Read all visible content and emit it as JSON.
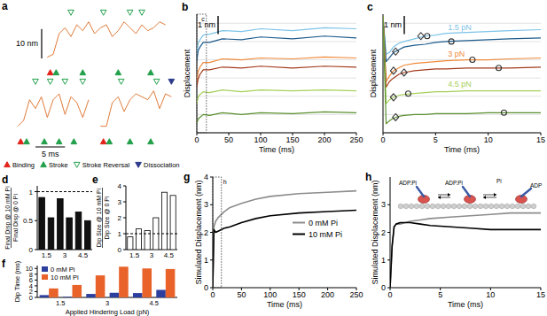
{
  "chart_data": [
    {
      "title": "a",
      "type": "trace",
      "tick_labels": false,
      "xlim": [
        0,
        27
      ],
      "ylim": [
        -4,
        14
      ],
      "events": [
        {
          "name": "Binding",
          "color": "#e2231a",
          "marker": "triangle-up"
        },
        {
          "name": "Stroke",
          "color": "#22a04b",
          "marker": "triangle-up"
        },
        {
          "name": "Stroke Reversal",
          "color": "#22a04b",
          "marker": "triangle-down-open"
        },
        {
          "name": "Dissociation",
          "color": "#2e3a8c",
          "marker": "triangle-down"
        }
      ],
      "scale_bars": [
        {
          "label": "10 nm",
          "value": 10,
          "axis": "y"
        },
        {
          "label": "5 ms",
          "value": 5,
          "axis": "x"
        }
      ],
      "series": [
        {
          "color": "#e07b39",
          "row": 0,
          "x": [
            5,
            6,
            7,
            8,
            9,
            10,
            11,
            12,
            13,
            14,
            15,
            16,
            17,
            18,
            19,
            20,
            21,
            22,
            23,
            24,
            25
          ],
          "values": [
            0,
            1,
            8,
            10,
            7,
            11,
            9,
            12,
            8,
            10,
            11,
            7,
            9,
            12,
            10,
            8,
            11,
            9,
            10,
            12,
            11
          ],
          "events": [
            [
              5.5
            ],
            [
              6.5,
              11,
              17,
              22.5
            ],
            [
              9,
              14.5,
              19,
              21
            ],
            []
          ]
        },
        {
          "color": "#e07b39",
          "row": 1,
          "x": [
            0,
            1,
            2,
            3,
            4,
            5,
            6,
            7,
            8,
            9,
            10,
            11,
            12
          ],
          "values": [
            0,
            2,
            9,
            6,
            10,
            3,
            9,
            11,
            4,
            10,
            8,
            3,
            9
          ],
          "events": [
            [
              0.5
            ],
            [
              1.5,
              4.5,
              7,
              9.5
            ],
            [
              3,
              5.5,
              8,
              11
            ],
            []
          ]
        },
        {
          "color": "#e07b39",
          "row": 1,
          "x": [
            14,
            15,
            16,
            17,
            18,
            19,
            20,
            21,
            22,
            23,
            24,
            25,
            26
          ],
          "values": [
            0,
            0,
            8,
            10,
            5,
            9,
            11,
            10,
            9,
            12,
            6,
            11,
            10
          ],
          "events": [
            [
              14.5
            ],
            [
              15.5,
              19,
              22.5
            ],
            [
              17.5,
              23.5
            ],
            [
              26
            ]
          ]
        }
      ]
    },
    {
      "title": "b",
      "type": "line",
      "xlabel": "Time (ms)",
      "ylabel": "Displacement",
      "x": [
        0,
        2,
        5,
        10,
        20,
        40,
        70,
        100,
        150,
        200,
        250
      ],
      "xlim": [
        0,
        250
      ],
      "xticks": [
        0,
        50,
        100,
        150,
        200,
        250
      ],
      "ylim": [
        0,
        6.5
      ],
      "yticks": [
        0,
        1,
        2,
        3,
        4,
        5,
        6
      ],
      "grid": true,
      "tick_labels": "x",
      "scale_bars": [
        {
          "label": "1 nm",
          "value": 1,
          "axis": "y"
        }
      ],
      "annotations": [
        "c"
      ],
      "series": [
        {
          "color": "#7cc4e8",
          "values": [
            4.3,
            4.9,
            5.1,
            5.35,
            5.4,
            5.6,
            5.55,
            5.7,
            5.6,
            5.75,
            5.7
          ]
        },
        {
          "color": "#1d5b8c",
          "values": [
            3.9,
            4.5,
            4.7,
            4.95,
            4.95,
            5.15,
            5.1,
            5.25,
            5.15,
            5.3,
            5.2
          ]
        },
        {
          "color": "#f08a3c",
          "values": [
            2.8,
            3.35,
            3.6,
            3.85,
            3.85,
            4.05,
            4.0,
            4.1,
            4.05,
            4.15,
            4.1
          ]
        },
        {
          "color": "#a33a1c",
          "values": [
            2.5,
            2.95,
            3.2,
            3.45,
            3.45,
            3.6,
            3.55,
            3.65,
            3.55,
            3.65,
            3.6
          ]
        },
        {
          "color": "#a6d05a",
          "values": [
            1.6,
            1.95,
            2.1,
            2.25,
            2.2,
            2.35,
            2.25,
            2.35,
            2.3,
            2.35,
            2.3
          ]
        },
        {
          "color": "#5a8f2e",
          "values": [
            0.5,
            0.75,
            0.85,
            1.0,
            0.95,
            1.1,
            1.0,
            1.1,
            1.05,
            1.15,
            1.1
          ]
        }
      ]
    },
    {
      "title": "c",
      "type": "line",
      "xlabel": "Time (ms)",
      "ylabel": "Displacement",
      "x": [
        0,
        0.3,
        0.6,
        1,
        1.5,
        2,
        3,
        4,
        5,
        6,
        8,
        10,
        12,
        15
      ],
      "xlim": [
        0,
        15
      ],
      "xticks": [
        0,
        5,
        10,
        15
      ],
      "ylim": [
        0,
        6.5
      ],
      "yticks": [
        0,
        1,
        2,
        3,
        4,
        5,
        6
      ],
      "grid": true,
      "tick_labels": "x",
      "scale_bars": [
        {
          "label": "1 nm",
          "value": 1,
          "axis": "y"
        }
      ],
      "annotations": [
        "1.5 pN",
        "3 pN",
        "4.5 pN"
      ],
      "series": [
        {
          "color": "#7cc4e8",
          "values": [
            6.4,
            4.3,
            4.4,
            4.7,
            4.9,
            5.0,
            5.15,
            5.3,
            5.35,
            5.45,
            5.5,
            5.55,
            5.6,
            5.65
          ]
        },
        {
          "color": "#1d5b8c",
          "values": [
            6.4,
            3.9,
            4.1,
            4.4,
            4.55,
            4.7,
            4.8,
            4.85,
            4.95,
            5.0,
            5.05,
            5.1,
            5.15,
            5.2
          ]
        },
        {
          "color": "#f08a3c",
          "values": [
            6.4,
            2.8,
            3.1,
            3.4,
            3.55,
            3.7,
            3.8,
            3.85,
            3.9,
            3.95,
            4.0,
            4.0,
            4.05,
            4.1
          ]
        },
        {
          "color": "#a33a1c",
          "values": [
            6.4,
            2.5,
            2.8,
            3.0,
            3.2,
            3.3,
            3.4,
            3.45,
            3.5,
            3.5,
            3.55,
            3.55,
            3.55,
            3.6
          ]
        },
        {
          "color": "#a6d05a",
          "values": [
            6.4,
            1.6,
            1.8,
            1.95,
            2.05,
            2.1,
            2.15,
            2.2,
            2.25,
            2.25,
            2.3,
            2.3,
            2.3,
            2.3
          ]
        },
        {
          "color": "#5a8f2e",
          "values": [
            6.4,
            0.5,
            0.65,
            0.8,
            0.9,
            0.95,
            1.0,
            1.0,
            1.05,
            1.05,
            1.05,
            1.1,
            1.1,
            1.1
          ]
        },
        {
          "type": "scatter",
          "marker": "diamond",
          "color": "#333333",
          "x": [
            3.6,
            1.2,
            1.0,
            2.0,
            1.0,
            1.2
          ],
          "values": [
            5.3,
            4.45,
            3.4,
            3.3,
            1.95,
            0.85
          ]
        },
        {
          "type": "scatter",
          "marker": "circle",
          "color": "#333333",
          "x": [
            4.2,
            6.5,
            8.5,
            11,
            2.4,
            11.5
          ],
          "values": [
            5.3,
            5.0,
            4.0,
            3.55,
            2.15,
            1.1
          ]
        }
      ]
    },
    {
      "title": "d",
      "type": "bar",
      "ylabel": [
        "Final Disp @ 10 mM Pi",
        "Final Disp @ 0 Pi"
      ],
      "categories": [
        "1.5",
        null,
        "3",
        null,
        "4.5",
        null
      ],
      "values": [
        0.9,
        0.55,
        0.88,
        0.55,
        0.65,
        0.5
      ],
      "color": "#111111",
      "ylim": [
        0,
        1.1
      ],
      "yticks": [
        0,
        0.5,
        1
      ],
      "reference": 1
    },
    {
      "title": "e",
      "type": "bar",
      "ylabel": [
        "Dip Size @ 10 mM Pi",
        "Dip Size @ 0 Pi"
      ],
      "categories": [
        "1.5",
        null,
        "3",
        null,
        "4.5",
        null
      ],
      "values": [
        0.8,
        1.3,
        1.2,
        2.0,
        3.6,
        3.4
      ],
      "color": "#ffffff",
      "ylim": [
        0,
        4
      ],
      "yticks": [
        0,
        1,
        2,
        3,
        4
      ],
      "reference": 1
    },
    {
      "title": "f",
      "type": "bar",
      "xlabel": "Applied Hindering Load (pN)",
      "ylabel": "Dip Time (ms)",
      "categories": [
        "1.5",
        null,
        "3",
        null,
        "4.5",
        null
      ],
      "ylim": [
        0,
        11
      ],
      "yticks": [
        0,
        2,
        4,
        6,
        8,
        10
      ],
      "legend": "upper left",
      "series": [
        {
          "name": "0 mM Pi",
          "color": "#2c3e9e",
          "values": [
            0.8,
            0.2,
            1.2,
            1.6,
            1.5,
            2.6
          ]
        },
        {
          "name": "10 mM Pi",
          "color": "#e8622a",
          "values": [
            3.1,
            4.3,
            7.6,
            10.6,
            10.0,
            9.8
          ]
        }
      ]
    },
    {
      "title": "g",
      "type": "line",
      "xlabel": "Time (ms)",
      "ylabel": "Simulated Displacement (nm)",
      "x": [
        0,
        2,
        5,
        10,
        20,
        30,
        50,
        75,
        100,
        150,
        200,
        250
      ],
      "xlim": [
        0,
        250
      ],
      "xticks": [
        0,
        50,
        100,
        150,
        200,
        250
      ],
      "ylim": [
        0,
        4
      ],
      "yticks": [
        0,
        1,
        2,
        3,
        4
      ],
      "legend": "right",
      "annotations": [
        "h"
      ],
      "series": [
        {
          "name": "0 mM Pi",
          "color": "#8c8c8c",
          "values": [
            0,
            2.2,
            2.4,
            2.55,
            2.75,
            2.9,
            3.05,
            3.2,
            3.3,
            3.4,
            3.45,
            3.5
          ]
        },
        {
          "name": "10 mM Pi",
          "color": "#000000",
          "values": [
            0,
            2.1,
            2.0,
            2.05,
            2.15,
            2.2,
            2.35,
            2.5,
            2.6,
            2.7,
            2.75,
            2.8
          ]
        }
      ]
    },
    {
      "title": "h",
      "type": "line",
      "xlabel": "Time (ms)",
      "ylabel": "Simulated Displacement (nm)",
      "x": [
        0,
        0.2,
        0.4,
        0.6,
        1,
        1.5,
        2,
        3,
        4,
        6,
        8,
        10,
        12,
        15
      ],
      "xlim": [
        0,
        15
      ],
      "xticks": [
        0,
        5,
        10,
        15
      ],
      "ylim": [
        0,
        4
      ],
      "yticks": [
        0,
        1,
        2,
        3
      ],
      "annotations": [
        "ADP.Pi",
        "ADP.Pi",
        "Pi",
        "ADP"
      ],
      "series": [
        {
          "color": "#8c8c8c",
          "values": [
            0,
            1.5,
            2.2,
            2.3,
            2.3,
            2.35,
            2.4,
            2.45,
            2.5,
            2.55,
            2.6,
            2.65,
            2.7,
            2.7
          ]
        },
        {
          "color": "#000000",
          "values": [
            0,
            1.5,
            2.2,
            2.3,
            2.35,
            2.35,
            2.35,
            2.3,
            2.25,
            2.2,
            2.15,
            2.1,
            2.1,
            2.1
          ]
        }
      ]
    }
  ]
}
